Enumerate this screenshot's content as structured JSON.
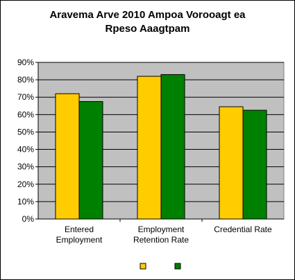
{
  "chart_data": {
    "type": "bar",
    "title_lines": [
      "Aravema Arve 2010 Ampoa Vorooagt ea",
      "Rpeso Aaagtpam"
    ],
    "categories": [
      [
        "Entered",
        "Employment"
      ],
      [
        "Employment",
        "Retention Rate"
      ],
      [
        "Credential Rate"
      ]
    ],
    "series": [
      {
        "name": "",
        "color": "#FFCC00",
        "values": [
          72,
          82,
          64.5
        ]
      },
      {
        "name": "",
        "color": "#008000",
        "values": [
          67.5,
          83,
          62.5
        ]
      }
    ],
    "ylim": [
      0,
      90
    ],
    "ytick_step": 10,
    "ytick_format": "percent",
    "plot_background": "#C0C0C0",
    "grid": true,
    "legend_position": "bottom"
  }
}
